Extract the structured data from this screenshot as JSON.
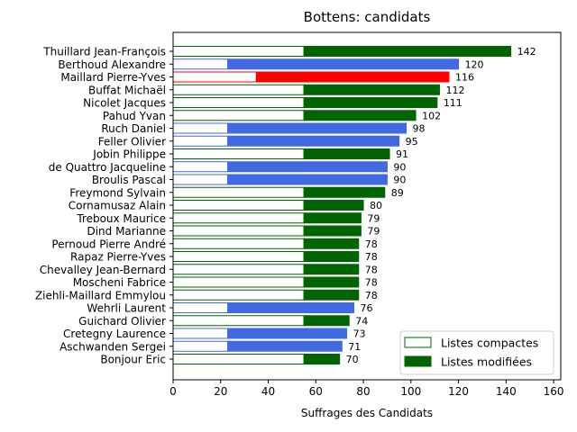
{
  "chart_data": {
    "type": "bar",
    "orientation": "horizontal",
    "stacked": true,
    "title": "Bottens: candidats",
    "xlabel": "Suffrages des Candidats",
    "ylabel": "",
    "xlim": [
      0,
      163
    ],
    "xticks": [
      0,
      20,
      40,
      60,
      80,
      100,
      120,
      140,
      160
    ],
    "grid": false,
    "legend_position": "lower-right",
    "legend": [
      {
        "label": "Listes compactes",
        "style": "outline",
        "color": "#006400"
      },
      {
        "label": "Listes modifiées",
        "style": "filled",
        "color": "#006400"
      }
    ],
    "colors": {
      "green": "#006400",
      "blue": "#4169E1",
      "red": "#FF0000"
    },
    "categories": [
      "Thuillard Jean-François",
      "Berthoud Alexandre",
      "Maillard Pierre-Yves",
      "Buffat Michaël",
      "Nicolet Jacques",
      "Pahud Yvan",
      "Ruch Daniel",
      "Feller Olivier",
      "Jobin Philippe",
      "de Quattro Jacqueline",
      "Broulis Pascal",
      "Freymond Sylvain",
      "Cornamusaz Alain",
      "Treboux Maurice",
      "Dind Marianne",
      "Pernoud Pierre André",
      "Rapaz Pierre-Yves",
      "Chevalley Jean-Bernard",
      "Moscheni Fabrice",
      "Ziehli-Maillard Emmylou",
      "Wehrli Laurent",
      "Guichard Olivier",
      "Cretegny Laurence",
      "Aschwanden Sergei",
      "Bonjour Eric"
    ],
    "series": [
      {
        "name": "Listes compactes",
        "values": [
          55,
          23,
          35,
          55,
          55,
          55,
          23,
          23,
          55,
          23,
          23,
          55,
          55,
          55,
          55,
          55,
          55,
          55,
          55,
          55,
          23,
          55,
          23,
          23,
          55
        ]
      },
      {
        "name": "Listes modifiées",
        "values": [
          87,
          97,
          81,
          57,
          56,
          47,
          75,
          72,
          36,
          67,
          67,
          34,
          25,
          24,
          24,
          23,
          23,
          23,
          23,
          23,
          53,
          19,
          50,
          48,
          15
        ]
      }
    ],
    "totals": [
      142,
      120,
      116,
      112,
      111,
      102,
      98,
      95,
      91,
      90,
      90,
      89,
      80,
      79,
      79,
      78,
      78,
      78,
      78,
      78,
      76,
      74,
      73,
      71,
      70
    ],
    "bar_colors": [
      "green",
      "blue",
      "red",
      "green",
      "green",
      "green",
      "blue",
      "blue",
      "green",
      "blue",
      "blue",
      "green",
      "green",
      "green",
      "green",
      "green",
      "green",
      "green",
      "green",
      "green",
      "blue",
      "green",
      "blue",
      "blue",
      "green"
    ]
  }
}
